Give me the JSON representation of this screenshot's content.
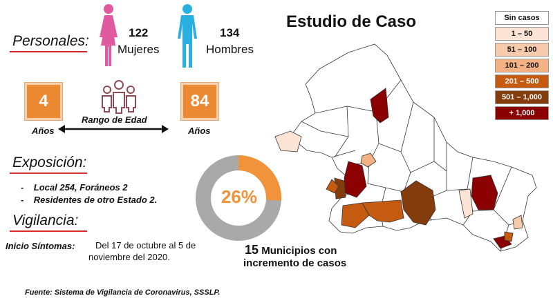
{
  "title": "Estudio de Caso",
  "personales": {
    "label": "Personales:",
    "mujeres_count": "122",
    "mujeres_label": "Mujeres",
    "hombres_count": "134",
    "hombres_label": "Hombres"
  },
  "edad": {
    "min_value": "4",
    "min_label": "Años",
    "max_value": "84",
    "max_label": "Años",
    "range_label": "Rango de Edad"
  },
  "exposicion": {
    "label": "Exposición:",
    "items": [
      "Local  254, Foráneos 2",
      "Residentes de otro Estado 2."
    ]
  },
  "vigilancia": {
    "label": "Vigilancia:",
    "inicio_label": "Inicio Síntomas:",
    "inicio_text_line1": "Del 17 de octubre al 5 de",
    "inicio_text_line2": "noviembre del 2020."
  },
  "donut": {
    "percent_text": "26%",
    "fraction": 0.26,
    "color_fill": "#f0933a",
    "color_rest": "#a9a9a9"
  },
  "municipios": {
    "count": "15",
    "line1_rest": " Municipios con",
    "line2": "incremento de casos"
  },
  "legend": [
    {
      "label": "Sin casos",
      "color": "#ffffff",
      "text_color": "#111111"
    },
    {
      "label": "1 – 50",
      "color": "#fbe4d5",
      "text_color": "#111111"
    },
    {
      "label": "51 – 100",
      "color": "#f8cbad",
      "text_color": "#111111"
    },
    {
      "label": "101 – 200",
      "color": "#f4b183",
      "text_color": "#111111"
    },
    {
      "label": "201 – 500",
      "color": "#c55a11",
      "text_color": "#ffffff"
    },
    {
      "label": "501 – 1,000",
      "color": "#843c0c",
      "text_color": "#ffffff"
    },
    {
      "label": "+ 1,000",
      "color": "#8b0000",
      "text_color": "#ffffff"
    }
  ],
  "fuente": "Fuente: Sistema de Vigilancia de Coronavirus, SSSLP."
}
